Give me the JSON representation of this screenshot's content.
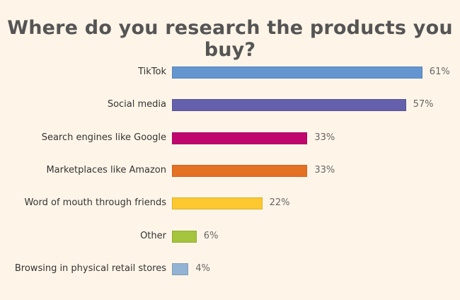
{
  "chart_data": {
    "type": "bar",
    "orientation": "horizontal",
    "title": "Where do you research the products you buy?",
    "categories": [
      "TikTok",
      "Social media",
      "Search engines like Google",
      "Marketplaces like Amazon",
      "Word of mouth through friends",
      "Other",
      "Browsing in physical retail stores"
    ],
    "values": [
      61,
      57,
      33,
      33,
      22,
      6,
      4
    ],
    "value_labels": [
      "61%",
      "57%",
      "33%",
      "33%",
      "22%",
      "6%",
      "4%"
    ],
    "colors": [
      "#6495d0",
      "#6560ab",
      "#c0076e",
      "#e57124",
      "#fcc82f",
      "#a4c43c",
      "#93b3d4"
    ],
    "xlabel": "",
    "ylabel": "",
    "xlim": [
      0,
      100
    ],
    "grid": false
  }
}
